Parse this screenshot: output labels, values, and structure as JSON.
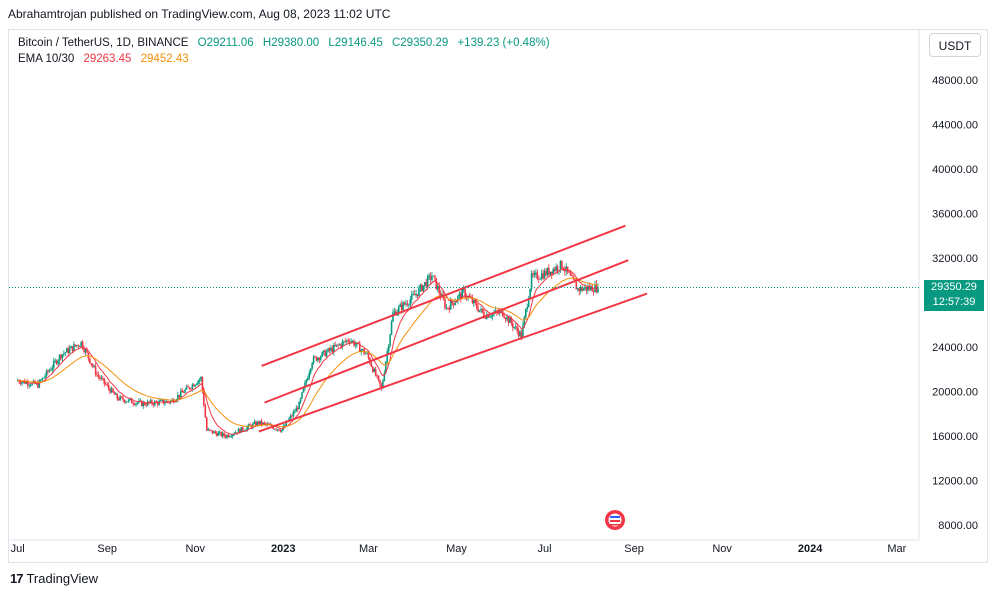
{
  "header": {
    "published": "Abrahamtrojan published on TradingView.com, Aug 08, 2023 11:02 UTC"
  },
  "legend": {
    "symbol": "Bitcoin / TetherUS, 1D, BINANCE",
    "open": "O29211.06",
    "high": "H29380.00",
    "low": "L29146.45",
    "close": "C29350.29",
    "change": "+139.23 (+0.48%)",
    "ema_label": "EMA 10/30",
    "ema10": "29263.45",
    "ema30": "29452.43"
  },
  "unit_button": "USDT",
  "last_price": {
    "price": "29350.29",
    "countdown": "12:57:39"
  },
  "brand": {
    "name": "TradingView",
    "logo": "17"
  },
  "colors": {
    "up": "#089981",
    "down": "#f23645",
    "ema10": "#f23645",
    "ema30": "#f5900b",
    "channel": "#f23645"
  },
  "chart_data": {
    "type": "candlestick",
    "title": "Bitcoin / TetherUS, 1D, BINANCE",
    "x_ticks": [
      "Jul",
      "Sep",
      "Nov",
      "2023",
      "Mar",
      "May",
      "Jul",
      "Sep",
      "Nov",
      "2024",
      "Mar"
    ],
    "y_ticks": [
      "8000.00",
      "12000.00",
      "16000.00",
      "20000.00",
      "24000.00",
      "28000.00",
      "32000.00",
      "36000.00",
      "40000.00",
      "44000.00",
      "48000.00"
    ],
    "ylim": [
      8000,
      50000
    ],
    "price_path": [
      [
        "2022-07-01",
        21000
      ],
      [
        "2022-07-15",
        20600
      ],
      [
        "2022-07-31",
        23300
      ],
      [
        "2022-08-14",
        24400
      ],
      [
        "2022-08-25",
        21500
      ],
      [
        "2022-09-08",
        19400
      ],
      [
        "2022-09-25",
        18900
      ],
      [
        "2022-10-15",
        19100
      ],
      [
        "2022-11-05",
        21200
      ],
      [
        "2022-11-09",
        16500
      ],
      [
        "2022-11-22",
        16000
      ],
      [
        "2022-12-15",
        17200
      ],
      [
        "2022-12-31",
        16550
      ],
      [
        "2023-01-12",
        18800
      ],
      [
        "2023-01-21",
        22800
      ],
      [
        "2023-02-01",
        23600
      ],
      [
        "2023-02-16",
        24700
      ],
      [
        "2023-02-28",
        23300
      ],
      [
        "2023-03-10",
        20200
      ],
      [
        "2023-03-18",
        27000
      ],
      [
        "2023-04-01",
        28500
      ],
      [
        "2023-04-14",
        30400
      ],
      [
        "2023-04-24",
        27500
      ],
      [
        "2023-05-06",
        28900
      ],
      [
        "2023-05-20",
        26900
      ],
      [
        "2023-06-02",
        27100
      ],
      [
        "2023-06-15",
        25000
      ],
      [
        "2023-06-22",
        30200
      ],
      [
        "2023-07-01",
        30600
      ],
      [
        "2023-07-13",
        31400
      ],
      [
        "2023-07-24",
        29200
      ],
      [
        "2023-08-07",
        29350
      ]
    ],
    "ema10_last": 29263.45,
    "ema30_last": 29452.43,
    "channel_lines": [
      {
        "from": [
          "2022-12-17",
          22300
        ],
        "to": [
          "2023-08-26",
          34900
        ]
      },
      {
        "from": [
          "2022-12-19",
          19000
        ],
        "to": [
          "2023-08-28",
          31800
        ]
      },
      {
        "from": [
          "2022-12-15",
          16400
        ],
        "to": [
          "2023-09-10",
          28800
        ]
      }
    ],
    "last_price": 29350.29
  }
}
